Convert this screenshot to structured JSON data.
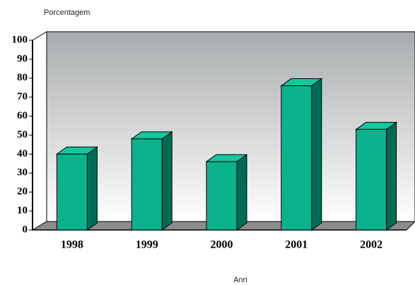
{
  "chart_data": {
    "type": "bar3d",
    "y_label": "Porcentagem",
    "x_label": "Ann",
    "categories": [
      "1998",
      "1999",
      "2000",
      "2001",
      "2002"
    ],
    "values": [
      40,
      48,
      36,
      76,
      53
    ],
    "color": "#0bb38c",
    "ylim": [
      0,
      100
    ],
    "yticks": [
      0,
      10,
      20,
      30,
      40,
      50,
      60,
      70,
      80,
      90,
      100
    ]
  }
}
